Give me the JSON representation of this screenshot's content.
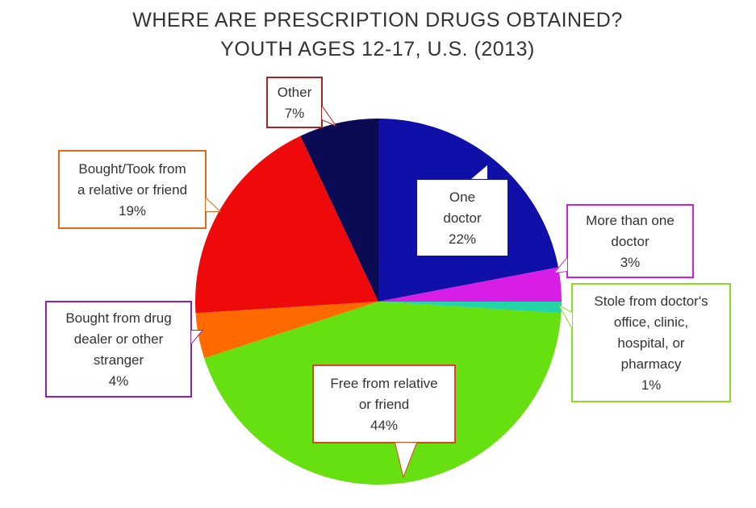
{
  "chart_data": {
    "type": "pie",
    "title": [
      "WHERE ARE PRESCRIPTION DRUGS OBTAINED?",
      "YOUTH AGES 12-17, U.S. (2013)"
    ],
    "slices": [
      {
        "label_lines": [
          "One",
          "doctor"
        ],
        "pct_label": "22%",
        "value": 22,
        "color": "#1010a8",
        "border": "#1010a8"
      },
      {
        "label_lines": [
          "More than one",
          "doctor"
        ],
        "pct_label": "3%",
        "value": 3,
        "color": "#d61ee6",
        "border": "#cc22dd"
      },
      {
        "label_lines": [
          "Stole from doctor's",
          "office, clinic,",
          "hospital, or",
          "pharmacy"
        ],
        "pct_label": "1%",
        "value": 1,
        "color": "#22d4a8",
        "border": "#88dd22"
      },
      {
        "label_lines": [
          "Free from relative",
          "or friend"
        ],
        "pct_label": "44%",
        "value": 44,
        "color": "#66e010",
        "border": "#dd4422"
      },
      {
        "label_lines": [
          "Bought from drug",
          "dealer or other",
          "stranger"
        ],
        "pct_label": "4%",
        "value": 4,
        "color": "#ff6a00",
        "border": "#8822bb"
      },
      {
        "label_lines": [
          "Bought/Took from",
          "a relative or friend"
        ],
        "pct_label": "19%",
        "value": 19,
        "color": "#ee0a0a",
        "border": "#e06a1a"
      },
      {
        "label_lines": [
          "Other"
        ],
        "pct_label": "7%",
        "value": 7,
        "color": "#0a0a55",
        "border": "#aa2222"
      }
    ]
  }
}
